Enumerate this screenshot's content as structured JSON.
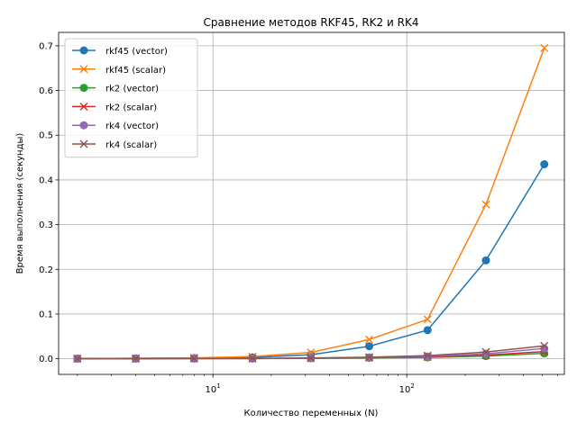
{
  "chart_data": {
    "type": "line",
    "title": "Сравнение методов RKF45, RK2 и RK4",
    "xlabel": "Количество переменных (N)",
    "ylabel": "Время выполнения (секунды)",
    "x_scale": "log",
    "xlim": [
      1.6,
      650
    ],
    "ylim": [
      -0.035,
      0.73
    ],
    "x_major_ticks": [
      {
        "value": 10,
        "base": "10",
        "exp": "1"
      },
      {
        "value": 100,
        "base": "10",
        "exp": "2"
      }
    ],
    "y_ticks": [
      0.0,
      0.1,
      0.2,
      0.3,
      0.4,
      0.5,
      0.6,
      0.7
    ],
    "y_tick_labels": [
      "0.0",
      "0.1",
      "0.2",
      "0.3",
      "0.4",
      "0.5",
      "0.6",
      "0.7"
    ],
    "grid": true,
    "legend_position": "upper-left",
    "x": [
      2,
      4,
      8,
      16,
      32,
      64,
      128,
      256,
      512
    ],
    "series": [
      {
        "name": "rkf45 (vector)",
        "color": "#1f77b4",
        "marker": "circle",
        "values": [
          0.0005,
          0.001,
          0.0015,
          0.003,
          0.009,
          0.028,
          0.064,
          0.22,
          0.435
        ]
      },
      {
        "name": "rkf45 (scalar)",
        "color": "#ff7f0e",
        "marker": "x",
        "values": [
          0.0005,
          0.001,
          0.002,
          0.005,
          0.014,
          0.043,
          0.088,
          0.345,
          0.695
        ]
      },
      {
        "name": "rk2 (vector)",
        "color": "#2ca02c",
        "marker": "circle",
        "values": [
          0.0002,
          0.0003,
          0.0004,
          0.0005,
          0.001,
          0.002,
          0.003,
          0.006,
          0.012
        ]
      },
      {
        "name": "rk2 (scalar)",
        "color": "#d62728",
        "marker": "x",
        "values": [
          0.0002,
          0.0003,
          0.0004,
          0.0006,
          0.0012,
          0.0025,
          0.004,
          0.008,
          0.016
        ]
      },
      {
        "name": "rk4 (vector)",
        "color": "#9467bd",
        "marker": "circle",
        "values": [
          0.0002,
          0.0003,
          0.0004,
          0.0006,
          0.0013,
          0.003,
          0.005,
          0.011,
          0.023
        ]
      },
      {
        "name": "rk4 (scalar)",
        "color": "#8c564b",
        "marker": "x",
        "values": [
          0.0002,
          0.0003,
          0.0005,
          0.0008,
          0.0017,
          0.0035,
          0.007,
          0.015,
          0.029
        ]
      }
    ]
  }
}
